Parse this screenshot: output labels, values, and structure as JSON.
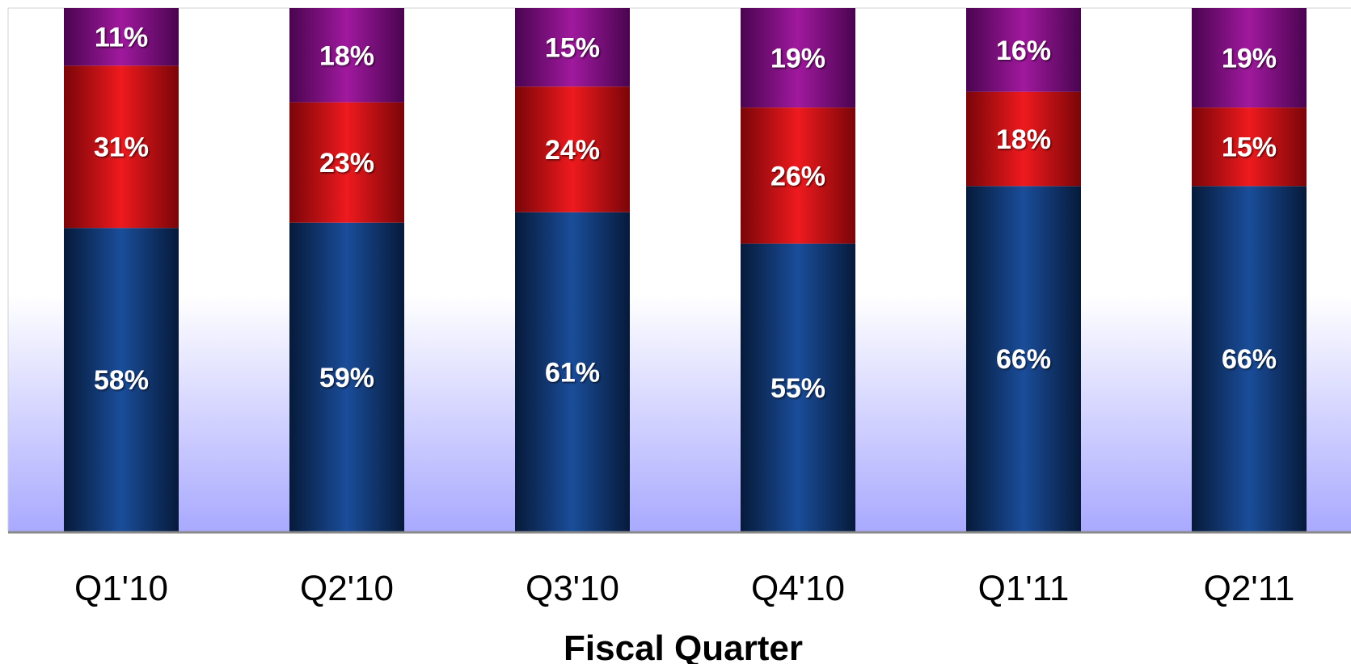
{
  "chart_data": {
    "type": "bar",
    "stacked": true,
    "title": "",
    "xlabel": "Fiscal Quarter",
    "ylabel": "",
    "ylim": [
      0,
      100
    ],
    "grid": false,
    "legend": "none",
    "categories": [
      "Q1'10",
      "Q2'10",
      "Q3'10",
      "Q4'10",
      "Q1'11",
      "Q2'11"
    ],
    "series": [
      {
        "color": "#0b3a7a",
        "values": [
          58,
          59,
          61,
          55,
          66,
          66
        ],
        "labels": [
          "58%",
          "59%",
          "61%",
          "55%",
          "66%",
          "66%"
        ]
      },
      {
        "color": "#d40f14",
        "values": [
          31,
          23,
          24,
          26,
          18,
          15
        ],
        "labels": [
          "31%",
          "23%",
          "24%",
          "26%",
          "18%",
          "15%"
        ]
      },
      {
        "color": "#8b0d8d",
        "values": [
          11,
          18,
          15,
          19,
          16,
          19
        ],
        "labels": [
          "11%",
          "18%",
          "15%",
          "19%",
          "16%",
          "19%"
        ]
      }
    ]
  }
}
